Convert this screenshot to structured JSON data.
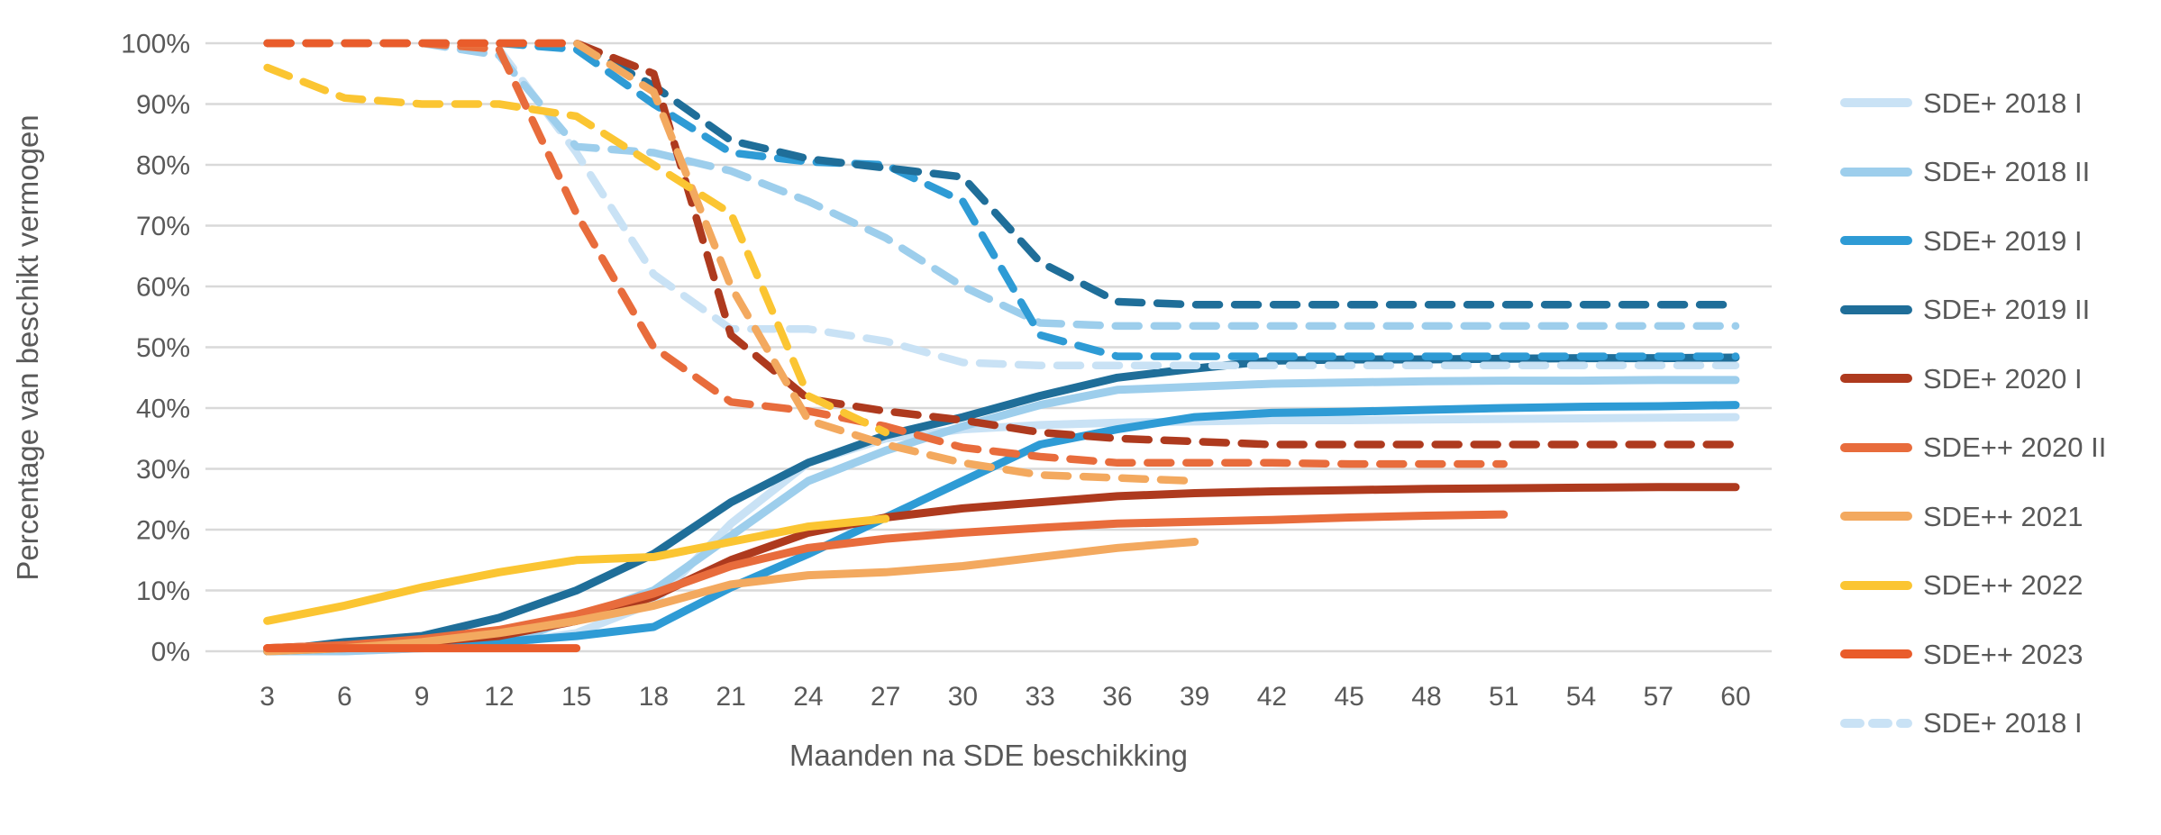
{
  "chart_data": {
    "type": "line",
    "title": "",
    "xlabel": "Maanden na SDE beschikking",
    "ylabel": "Percentage van beschikt vermogen",
    "xlim": [
      0.6,
      61.4
    ],
    "ylim": [
      0,
      100
    ],
    "grid": "horizontal",
    "legend_position": "right",
    "months": [
      3,
      6,
      9,
      12,
      15,
      18,
      21,
      24,
      27,
      30,
      33,
      36,
      39,
      42,
      45,
      48,
      51,
      54,
      57,
      60
    ],
    "x_tick_labels": [
      "3",
      "6",
      "9",
      "12",
      "15",
      "18",
      "21",
      "24",
      "27",
      "30",
      "33",
      "36",
      "39",
      "42",
      "45",
      "48",
      "51",
      "54",
      "57",
      "60"
    ],
    "y_ticks": [
      {
        "value": 0,
        "label": "0%"
      },
      {
        "value": 10,
        "label": "10%"
      },
      {
        "value": 20,
        "label": "20%"
      },
      {
        "value": 30,
        "label": "30%"
      },
      {
        "value": 40,
        "label": "40%"
      },
      {
        "value": 50,
        "label": "50%"
      },
      {
        "value": 60,
        "label": "60%"
      },
      {
        "value": 70,
        "label": "70%"
      },
      {
        "value": 80,
        "label": "80%"
      },
      {
        "value": 90,
        "label": "90%"
      },
      {
        "value": 100,
        "label": "100%"
      }
    ],
    "series": [
      {
        "name": "SDE+ 2018 I",
        "style": "solid",
        "color": "#C9E2F5",
        "y": [
          0,
          0,
          0.5,
          1,
          3,
          8,
          21,
          31,
          35,
          36.5,
          37.2,
          37.6,
          37.8,
          38,
          38,
          38.1,
          38.2,
          38.3,
          38.4,
          38.5
        ]
      },
      {
        "name": "SDE+ 2018 II",
        "style": "solid",
        "color": "#9DCEEC",
        "y": [
          0,
          0,
          0.5,
          1,
          5.5,
          10,
          19,
          28,
          33,
          37,
          40.5,
          43,
          43.5,
          44,
          44.2,
          44.4,
          44.5,
          44.5,
          44.6,
          44.6
        ]
      },
      {
        "name": "SDE+ 2019 I",
        "style": "solid",
        "color": "#2E9BD5",
        "y": [
          0,
          0.5,
          1,
          1.5,
          2.5,
          4,
          10.5,
          16,
          22,
          28,
          34,
          36.5,
          38.5,
          39.2,
          39.4,
          39.7,
          40,
          40.2,
          40.3,
          40.5
        ]
      },
      {
        "name": "SDE+ 2019 II",
        "style": "solid",
        "color": "#1F6E99",
        "y": [
          0,
          1.5,
          2.5,
          5.5,
          10,
          16,
          24.5,
          31,
          35.5,
          38.5,
          42,
          45,
          46.5,
          47.8,
          48,
          48,
          48.1,
          48.2,
          48.2,
          48.3
        ]
      },
      {
        "name": "SDE+ 2020 I",
        "style": "solid",
        "color": "#AE3A1E",
        "y": [
          0.5,
          1,
          1.5,
          2.5,
          5,
          9,
          15,
          19.5,
          22,
          23.5,
          24.5,
          25.5,
          26,
          26.3,
          26.5,
          26.7,
          26.8,
          26.9,
          27,
          27
        ]
      },
      {
        "name": "SDE++ 2020 II",
        "style": "solid",
        "color": "#E86C3C",
        "y": [
          0.5,
          1,
          2,
          3.5,
          6,
          9.5,
          14,
          17,
          18.5,
          19.5,
          20.3,
          21,
          21.3,
          21.6,
          22,
          22.3,
          22.5
        ]
      },
      {
        "name": "SDE++ 2021",
        "style": "solid",
        "color": "#F3A95F",
        "y": [
          0,
          0.5,
          1.5,
          3,
          5,
          7.5,
          11,
          12.5,
          13,
          14,
          15.5,
          17,
          18
        ]
      },
      {
        "name": "SDE++ 2022",
        "style": "solid",
        "color": "#FBC532",
        "y": [
          5,
          7.5,
          10.5,
          13,
          15,
          15.5,
          18,
          20.5,
          21.8
        ]
      },
      {
        "name": "SDE++ 2023",
        "style": "solid",
        "color": "#E95C2B",
        "y": [
          0.5,
          0.5,
          0.5,
          0.5,
          0.5
        ]
      },
      {
        "name": "SDE+ 2018 I",
        "style": "dashed",
        "color": "#C9E2F5",
        "y": [
          100,
          100,
          100,
          99,
          82,
          62,
          53,
          53,
          51,
          47.5,
          47,
          47,
          47,
          47,
          47,
          47,
          47,
          47,
          47,
          47
        ]
      },
      {
        "name": "SDE+ 2018 II",
        "style": "dashed",
        "color": "#9DCEEC",
        "y": [
          100,
          100,
          100,
          98,
          83,
          82,
          79,
          74,
          68,
          60,
          54,
          53.5,
          53.5,
          53.5,
          53.5,
          53.5,
          53.5,
          53.5,
          53.5,
          53.5
        ]
      },
      {
        "name": "SDE+ 2019 I",
        "style": "dashed",
        "color": "#2E9BD5",
        "y": [
          100,
          100,
          100,
          100,
          99,
          90,
          82,
          80.5,
          80,
          74,
          52,
          48.5,
          48.5,
          48.5,
          48.5,
          48.5,
          48.5,
          48.5,
          48.5,
          48.5
        ]
      },
      {
        "name": "SDE+ 2019 II",
        "style": "dashed",
        "color": "#1F6E99",
        "y": [
          100,
          100,
          100,
          100,
          100,
          93,
          84,
          81,
          79.5,
          78,
          64,
          57.5,
          57,
          57,
          57,
          57,
          57,
          57,
          57,
          57
        ]
      },
      {
        "name": "SDE+ 2020 I",
        "style": "dashed",
        "color": "#AE3A1E",
        "y": [
          100,
          100,
          100,
          100,
          100,
          95,
          52,
          41.5,
          39.5,
          38,
          36,
          35,
          34.5,
          34,
          34,
          34,
          34,
          34,
          34,
          34
        ]
      },
      {
        "name": "SDE++ 2020 II",
        "style": "dashed",
        "color": "#E86C3C",
        "y": [
          100,
          100,
          100,
          99,
          72,
          50,
          41,
          39.5,
          37,
          33.5,
          32,
          31,
          31,
          31,
          30.8,
          30.8,
          30.8
        ]
      },
      {
        "name": "SDE++ 2021",
        "style": "dashed",
        "color": "#F3A95F",
        "y": [
          100,
          100,
          100,
          100,
          100,
          92,
          60,
          38,
          34,
          31,
          29,
          28.5,
          28
        ]
      },
      {
        "name": "SDE++ 2022",
        "style": "dashed",
        "color": "#FBC532",
        "y": [
          96,
          91,
          90,
          90,
          88,
          80,
          72,
          42,
          36
        ]
      },
      {
        "name": "SDE++ 2023",
        "style": "dashed",
        "color": "#E95C2B",
        "y": [
          100,
          100,
          100,
          100,
          100
        ]
      }
    ]
  },
  "legend": {
    "items": [
      {
        "label": "SDE+ 2018 I",
        "color": "#C9E2F5",
        "style": "solid"
      },
      {
        "label": "SDE+ 2018 II",
        "color": "#9DCEEC",
        "style": "solid"
      },
      {
        "label": "SDE+ 2019 I",
        "color": "#2E9BD5",
        "style": "solid"
      },
      {
        "label": "SDE+ 2019 II",
        "color": "#1F6E99",
        "style": "solid"
      },
      {
        "label": "SDE+ 2020 I",
        "color": "#AE3A1E",
        "style": "solid"
      },
      {
        "label": "SDE++ 2020 II",
        "color": "#E86C3C",
        "style": "solid"
      },
      {
        "label": "SDE++ 2021",
        "color": "#F3A95F",
        "style": "solid"
      },
      {
        "label": "SDE++ 2022",
        "color": "#FBC532",
        "style": "solid"
      },
      {
        "label": "SDE++ 2023",
        "color": "#E95C2B",
        "style": "solid"
      },
      {
        "label": "SDE+ 2018 I",
        "color": "#C9E2F5",
        "style": "dashed"
      }
    ]
  },
  "colors": {
    "grid": "#D9D9D9",
    "text": "#595959",
    "background": "#FFFFFF"
  }
}
